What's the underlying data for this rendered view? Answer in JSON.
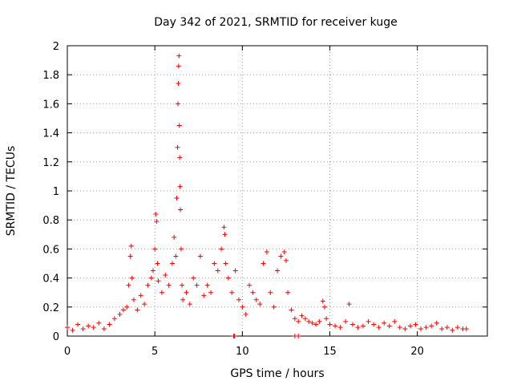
{
  "chart_data": {
    "type": "scatter",
    "title": "Day 342 of 2021, SRMTID for receiver kuge",
    "xlabel": "GPS time / hours",
    "ylabel": "SRMTID / TECUs",
    "xlim": [
      0,
      24
    ],
    "ylim": [
      0,
      2
    ],
    "xticks": [
      0,
      5,
      10,
      15,
      20
    ],
    "xtick_labels": [
      "0",
      "5",
      "10",
      "15",
      "20"
    ],
    "yticks": [
      0,
      0.2,
      0.4,
      0.6,
      0.8,
      1,
      1.2,
      1.4,
      1.6,
      1.8,
      2
    ],
    "ytick_labels": [
      "0",
      "0.2",
      "0.4",
      "0.6",
      "0.8",
      "1",
      "1.2",
      "1.4",
      "1.6",
      "1.8",
      "2"
    ],
    "grid": true,
    "color": "#ff0000",
    "marker": "plus",
    "series": [
      {
        "name": "SRMTID",
        "x": [
          0.0,
          0.3,
          0.6,
          0.9,
          1.2,
          1.5,
          1.8,
          2.1,
          2.4,
          2.7,
          3.0,
          3.2,
          3.4,
          3.5,
          3.6,
          3.65,
          3.7,
          3.8,
          4.0,
          4.2,
          4.4,
          4.6,
          4.8,
          4.9,
          5.0,
          5.05,
          5.1,
          5.15,
          5.2,
          5.4,
          5.6,
          5.8,
          6.0,
          6.1,
          6.2,
          6.25,
          6.3,
          6.32,
          6.34,
          6.36,
          6.38,
          6.4,
          6.42,
          6.44,
          6.46,
          6.5,
          6.55,
          6.6,
          6.8,
          7.0,
          7.2,
          7.4,
          7.6,
          7.8,
          8.0,
          8.2,
          8.4,
          8.6,
          8.8,
          8.95,
          9.0,
          9.05,
          9.2,
          9.4,
          9.6,
          9.8,
          10.0,
          10.2,
          10.4,
          10.6,
          10.8,
          11.0,
          11.2,
          11.4,
          11.6,
          11.8,
          12.0,
          12.2,
          12.4,
          12.5,
          12.6,
          12.8,
          13.0,
          13.2,
          13.4,
          13.6,
          13.8,
          14.0,
          14.2,
          14.4,
          14.6,
          14.7,
          14.8,
          15.0,
          15.3,
          15.6,
          15.9,
          16.1,
          16.3,
          16.6,
          16.9,
          17.2,
          17.5,
          17.8,
          18.1,
          18.4,
          18.7,
          19.0,
          19.3,
          19.6,
          19.9,
          20.2,
          20.5,
          20.8,
          21.1,
          21.4,
          21.7,
          22.0,
          22.3,
          22.6,
          22.8,
          9.5,
          9.55,
          13.0,
          13.2
        ],
        "y": [
          0.06,
          0.04,
          0.08,
          0.05,
          0.07,
          0.06,
          0.09,
          0.05,
          0.08,
          0.12,
          0.15,
          0.18,
          0.2,
          0.35,
          0.55,
          0.62,
          0.4,
          0.25,
          0.18,
          0.28,
          0.22,
          0.35,
          0.4,
          0.45,
          0.6,
          0.84,
          0.79,
          0.5,
          0.38,
          0.3,
          0.42,
          0.35,
          0.5,
          0.68,
          0.55,
          0.95,
          1.3,
          1.6,
          1.74,
          1.86,
          1.93,
          1.45,
          1.23,
          1.03,
          0.87,
          0.6,
          0.35,
          0.25,
          0.3,
          0.22,
          0.4,
          0.35,
          0.55,
          0.28,
          0.35,
          0.3,
          0.5,
          0.45,
          0.6,
          0.75,
          0.7,
          0.5,
          0.4,
          0.3,
          0.45,
          0.25,
          0.2,
          0.15,
          0.35,
          0.3,
          0.25,
          0.22,
          0.5,
          0.58,
          0.3,
          0.2,
          0.45,
          0.55,
          0.58,
          0.52,
          0.3,
          0.18,
          0.12,
          0.1,
          0.14,
          0.12,
          0.1,
          0.09,
          0.08,
          0.1,
          0.24,
          0.2,
          0.12,
          0.08,
          0.07,
          0.06,
          0.1,
          0.22,
          0.08,
          0.06,
          0.07,
          0.1,
          0.08,
          0.06,
          0.09,
          0.07,
          0.1,
          0.06,
          0.05,
          0.07,
          0.08,
          0.05,
          0.06,
          0.07,
          0.09,
          0.05,
          0.06,
          0.04,
          0.06,
          0.05,
          0.05,
          0.0,
          0.0,
          0.0,
          0.0
        ]
      }
    ]
  }
}
